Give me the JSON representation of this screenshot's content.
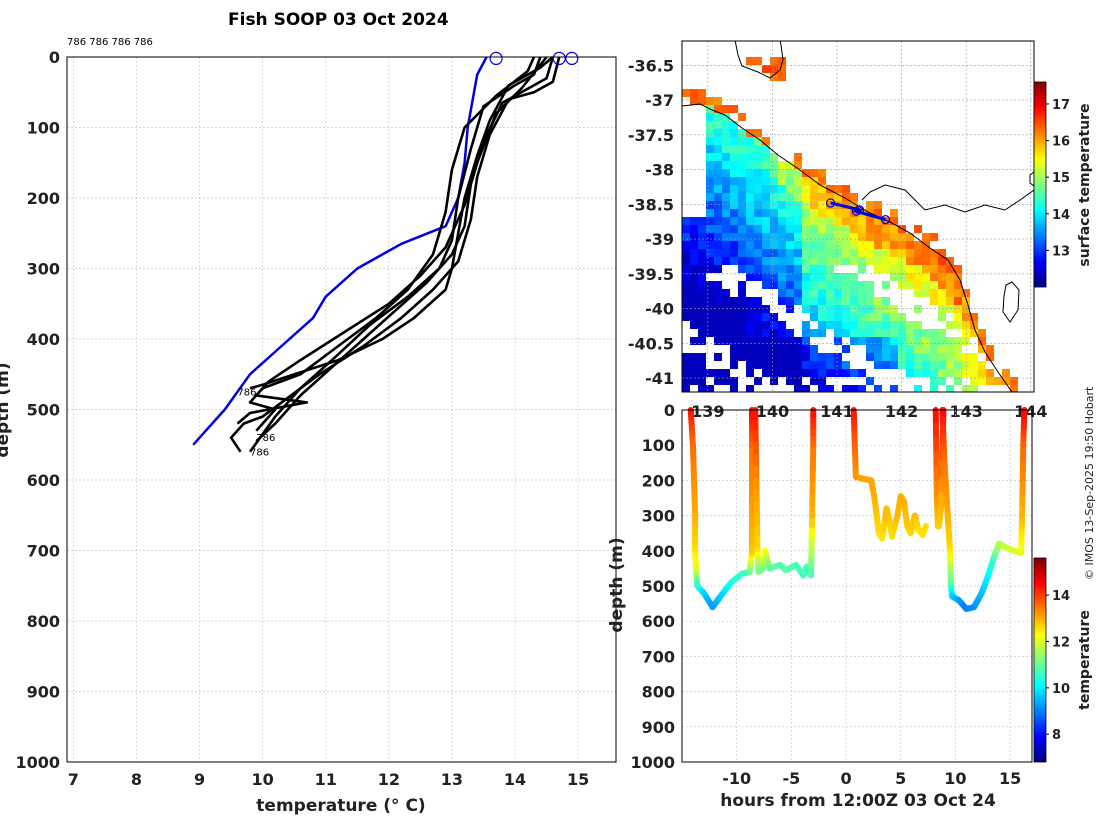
{
  "title": "Fish SOOP 03 Oct 2024",
  "profile_ids": "786 786 786 786",
  "credit": "© IMOS 13-Sep-2025 19:50 Hobart",
  "colors": {
    "profile": "#000000",
    "climatology": "#0000dd",
    "grid": "#c8c8c8",
    "land": "#ffffff",
    "coast": "#000000"
  },
  "chart_data": [
    {
      "id": "profiles",
      "type": "line",
      "title": "",
      "xlabel": "temperature (° C)",
      "ylabel": "depth (m)",
      "xlim": [
        6.9,
        15.6
      ],
      "ylim": [
        1000,
        0
      ],
      "xticks": [
        7,
        8,
        9,
        10,
        11,
        12,
        13,
        14,
        15
      ],
      "yticks": [
        0,
        100,
        200,
        300,
        400,
        500,
        600,
        700,
        800,
        900,
        1000
      ],
      "grid": true,
      "surface_markers": [
        [
          13.7,
          2
        ],
        [
          14.7,
          2
        ],
        [
          14.9,
          2
        ]
      ],
      "labels": [
        {
          "text": "786",
          "x": 9.9,
          "y": 545
        },
        {
          "text": "786",
          "x": 9.8,
          "y": 565
        },
        {
          "text": "786",
          "x": 9.6,
          "y": 480
        }
      ],
      "series": [
        {
          "name": "climatology",
          "color": "#0000dd",
          "points": [
            [
              13.55,
              0
            ],
            [
              13.4,
              25
            ],
            [
              13.25,
              100
            ],
            [
              13.2,
              150
            ],
            [
              13.1,
              200
            ],
            [
              12.9,
              240
            ],
            [
              12.2,
              265
            ],
            [
              11.5,
              300
            ],
            [
              11.0,
              340
            ],
            [
              10.8,
              370
            ],
            [
              10.3,
              410
            ],
            [
              9.8,
              450
            ],
            [
              9.4,
              500
            ],
            [
              9.1,
              530
            ],
            [
              8.9,
              550
            ]
          ]
        },
        {
          "name": "profile-1",
          "color": "#000000",
          "points": [
            [
              14.6,
              0
            ],
            [
              14.5,
              30
            ],
            [
              14.2,
              45
            ],
            [
              13.8,
              65
            ],
            [
              13.5,
              120
            ],
            [
              13.3,
              180
            ],
            [
              13.2,
              240
            ],
            [
              13.0,
              280
            ],
            [
              12.6,
              320
            ],
            [
              12.1,
              360
            ],
            [
              11.6,
              400
            ],
            [
              11.1,
              440
            ],
            [
              10.6,
              480
            ],
            [
              10.2,
              520
            ],
            [
              9.9,
              545
            ]
          ]
        },
        {
          "name": "profile-2",
          "color": "#000000",
          "points": [
            [
              14.4,
              0
            ],
            [
              14.3,
              25
            ],
            [
              14.0,
              40
            ],
            [
              13.5,
              70
            ],
            [
              13.3,
              130
            ],
            [
              13.1,
              200
            ],
            [
              13.0,
              260
            ],
            [
              12.8,
              300
            ],
            [
              12.3,
              340
            ],
            [
              11.7,
              380
            ],
            [
              11.1,
              430
            ],
            [
              10.6,
              470
            ],
            [
              10.2,
              510
            ],
            [
              9.8,
              560
            ]
          ]
        },
        {
          "name": "profile-3",
          "color": "#000000",
          "points": [
            [
              14.7,
              0
            ],
            [
              14.6,
              35
            ],
            [
              14.3,
              50
            ],
            [
              13.9,
              60
            ],
            [
              13.6,
              110
            ],
            [
              13.4,
              170
            ],
            [
              13.3,
              230
            ],
            [
              13.1,
              290
            ],
            [
              12.7,
              330
            ],
            [
              12.2,
              370
            ],
            [
              11.6,
              410
            ],
            [
              10.9,
              450
            ],
            [
              10.3,
              490
            ],
            [
              10.0,
              510
            ],
            [
              9.7,
              520
            ],
            [
              9.5,
              540
            ],
            [
              9.65,
              560
            ]
          ]
        },
        {
          "name": "profile-4",
          "color": "#000000",
          "points": [
            [
              14.5,
              0
            ],
            [
              14.1,
              45
            ],
            [
              13.7,
              80
            ],
            [
              13.4,
              150
            ],
            [
              13.2,
              210
            ],
            [
              12.9,
              270
            ],
            [
              12.5,
              310
            ],
            [
              12.0,
              350
            ],
            [
              11.3,
              390
            ],
            [
              10.6,
              430
            ],
            [
              10.1,
              460
            ],
            [
              9.9,
              480
            ],
            [
              10.7,
              490
            ],
            [
              9.8,
              505
            ],
            [
              9.6,
              520
            ]
          ]
        },
        {
          "name": "profile-5",
          "color": "#000000",
          "points": [
            [
              14.3,
              0
            ],
            [
              14.2,
              20
            ],
            [
              13.7,
              55
            ],
            [
              13.2,
              100
            ],
            [
              13.0,
              160
            ],
            [
              12.9,
              220
            ],
            [
              12.7,
              280
            ],
            [
              12.3,
              330
            ],
            [
              11.8,
              370
            ],
            [
              11.2,
              410
            ],
            [
              10.6,
              450
            ],
            [
              10.0,
              470
            ],
            [
              9.8,
              490
            ],
            [
              10.2,
              500
            ],
            [
              9.9,
              530
            ]
          ]
        },
        {
          "name": "profile-6",
          "color": "#000000",
          "points": [
            [
              14.6,
              0
            ],
            [
              14.4,
              15
            ],
            [
              13.9,
              40
            ],
            [
              13.6,
              90
            ],
            [
              13.4,
              140
            ],
            [
              13.2,
              200
            ],
            [
              13.1,
              250
            ],
            [
              13.0,
              300
            ],
            [
              12.9,
              330
            ],
            [
              12.4,
              370
            ],
            [
              11.9,
              400
            ],
            [
              11.2,
              430
            ],
            [
              10.5,
              450
            ],
            [
              10.0,
              465
            ],
            [
              9.8,
              470
            ]
          ]
        }
      ]
    },
    {
      "id": "sst-map",
      "type": "heatmap",
      "title": "",
      "colorbar_label": "surface temperature",
      "x_tick_labels": [
        "139",
        "140",
        "141",
        "142",
        "143",
        "144"
      ],
      "y_ticks": [
        -36.5,
        -37,
        -37.5,
        -38,
        -38.5,
        -39,
        -39.5,
        -40,
        -40.5,
        -41
      ],
      "ylim": [
        -41.2,
        -36.15
      ],
      "xlim": [
        138.6,
        144.05
      ],
      "colorbar_ticks": [
        13,
        14,
        15,
        16,
        17
      ],
      "clim": [
        12.0,
        17.6
      ],
      "track": [
        [
          140.9,
          -38.48
        ],
        [
          141.35,
          -38.58
        ],
        [
          141.3,
          -38.6
        ],
        [
          141.75,
          -38.72
        ]
      ]
    },
    {
      "id": "depth-time",
      "type": "scatter",
      "title": "",
      "xlabel": "hours from 12:00Z 03 Oct 24",
      "ylabel": "depth (m)",
      "xlim": [
        -15,
        17
      ],
      "ylim": [
        1000,
        0
      ],
      "xticks": [
        -10,
        -5,
        0,
        5,
        10,
        15
      ],
      "yticks": [
        0,
        100,
        200,
        300,
        400,
        500,
        600,
        700,
        800,
        900,
        1000
      ],
      "colorbar_label": "temperature",
      "colorbar_ticks": [
        8,
        10,
        12,
        14
      ],
      "clim": [
        6.8,
        15.6
      ],
      "casts": [
        [
          [
            -14.2,
            0,
            14.4
          ],
          [
            -14.0,
            100,
            13.6
          ],
          [
            -13.9,
            200,
            13.3
          ],
          [
            -13.8,
            300,
            13.0
          ],
          [
            -13.8,
            400,
            12.6
          ],
          [
            -13.7,
            460,
            12.0
          ],
          [
            -13.6,
            500,
            10.6
          ],
          [
            -13.0,
            520,
            9.8
          ],
          [
            -12.2,
            560,
            9.2
          ],
          [
            -11.5,
            530,
            9.6
          ],
          [
            -10.5,
            490,
            10.2
          ],
          [
            -9.5,
            465,
            10.6
          ],
          [
            -8.8,
            460,
            10.8
          ],
          [
            -8.6,
            400,
            12.8
          ],
          [
            -8.6,
            250,
            13.2
          ],
          [
            -8.6,
            100,
            13.5
          ],
          [
            -8.6,
            0,
            14.5
          ]
        ],
        [
          [
            -8.3,
            0,
            14.4
          ],
          [
            -8.2,
            200,
            13.3
          ],
          [
            -8.1,
            400,
            12.6
          ],
          [
            -8.0,
            460,
            11.2
          ],
          [
            -7.6,
            450,
            11.0
          ],
          [
            -7.4,
            400,
            12.4
          ],
          [
            -7.0,
            450,
            11.0
          ],
          [
            -6.0,
            440,
            10.8
          ],
          [
            -5.5,
            455,
            10.9
          ],
          [
            -4.6,
            440,
            10.8
          ],
          [
            -3.9,
            470,
            10.6
          ],
          [
            -3.6,
            445,
            10.8
          ],
          [
            -3.2,
            470,
            10.6
          ],
          [
            -3.1,
            300,
            12.9
          ],
          [
            -3.0,
            100,
            13.5
          ],
          [
            -3.0,
            0,
            14.4
          ]
        ],
        [
          [
            0.7,
            0,
            14.4
          ],
          [
            0.8,
            100,
            13.7
          ],
          [
            0.9,
            190,
            13.2
          ],
          [
            1.5,
            195,
            13.1
          ],
          [
            2.3,
            200,
            13.1
          ],
          [
            2.6,
            250,
            13.0
          ],
          [
            3.0,
            350,
            12.6
          ],
          [
            3.3,
            365,
            12.5
          ],
          [
            3.7,
            280,
            12.9
          ],
          [
            4.0,
            320,
            12.8
          ],
          [
            4.2,
            360,
            12.5
          ],
          [
            4.7,
            300,
            12.9
          ],
          [
            5.0,
            245,
            13.0
          ],
          [
            5.3,
            260,
            13.0
          ],
          [
            5.6,
            330,
            12.8
          ],
          [
            5.9,
            350,
            12.6
          ],
          [
            6.3,
            300,
            12.9
          ],
          [
            6.6,
            340,
            12.6
          ],
          [
            7.0,
            355,
            12.5
          ],
          [
            7.3,
            330,
            12.6
          ]
        ],
        [
          [
            8.2,
            0,
            14.5
          ],
          [
            8.3,
            250,
            13.2
          ],
          [
            8.4,
            330,
            12.8
          ],
          [
            8.5,
            330,
            12.7
          ],
          [
            8.7,
            270,
            12.9
          ],
          [
            8.9,
            0,
            14.5
          ]
        ],
        [
          [
            8.8,
            0,
            14.5
          ],
          [
            9.0,
            150,
            13.5
          ],
          [
            9.3,
            300,
            13.0
          ],
          [
            9.5,
            400,
            12.6
          ],
          [
            9.6,
            500,
            10.8
          ],
          [
            9.7,
            530,
            9.8
          ],
          [
            10.3,
            540,
            9.3
          ],
          [
            11.0,
            565,
            9.0
          ],
          [
            11.7,
            560,
            9.1
          ],
          [
            12.4,
            520,
            9.5
          ],
          [
            13.0,
            470,
            10.0
          ],
          [
            13.5,
            420,
            10.6
          ],
          [
            14.0,
            380,
            11.6
          ],
          [
            14.6,
            390,
            11.8
          ],
          [
            15.3,
            400,
            11.9
          ],
          [
            16.0,
            405,
            12.0
          ],
          [
            16.1,
            300,
            12.9
          ],
          [
            16.2,
            100,
            13.6
          ],
          [
            16.3,
            0,
            14.5
          ]
        ]
      ]
    }
  ]
}
